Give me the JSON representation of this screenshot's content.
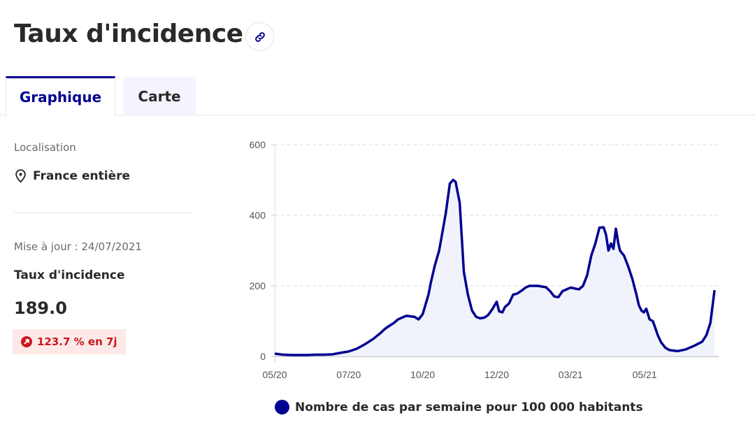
{
  "header": {
    "title": "Taux d'incidence",
    "link_icon": "link-icon"
  },
  "tabs": [
    {
      "label": "Graphique",
      "active": true
    },
    {
      "label": "Carte",
      "active": false
    }
  ],
  "sidebar": {
    "location_label": "Localisation",
    "location_icon": "map-pin-icon",
    "location_value": "France entière",
    "updated": "Mise à jour : 24/07/2021",
    "kpi_label": "Taux d'incidence",
    "kpi_value": "189.0",
    "trend_icon": "arrow-up-right-icon",
    "trend_text": "123.7 % en 7j",
    "trend_color": "#c9191e"
  },
  "colors": {
    "accent": "#000091",
    "fill": "#eef0fb",
    "grid": "#dddddd"
  },
  "chart_data": {
    "type": "area",
    "title": "",
    "xlabel": "",
    "ylabel": "",
    "ylim": [
      0,
      600
    ],
    "yticks": [
      0,
      200,
      400,
      600
    ],
    "grid": true,
    "xtick_labels": [
      "05/20",
      "07/20",
      "10/20",
      "12/20",
      "03/21",
      "05/21"
    ],
    "xtick_positions": [
      0,
      9,
      18,
      27,
      36,
      45
    ],
    "x_range": [
      0,
      54
    ],
    "legend": {
      "label": "Nombre de cas par semaine pour 100 000 habitants",
      "placement": "bottom"
    },
    "series": [
      {
        "name": "Nombre de cas par semaine pour 100 000 habitants",
        "x": [
          0,
          1,
          2,
          3,
          4,
          5,
          6,
          7,
          8,
          9,
          10,
          11,
          12,
          12.8,
          13.5,
          14.5,
          15,
          16,
          17,
          17.5,
          18,
          18.7,
          19,
          19.5,
          20,
          20.8,
          21.3,
          21.7,
          22,
          22.5,
          23,
          23.5,
          24,
          24.5,
          25,
          25.5,
          26,
          26.5,
          27,
          27.3,
          27.7,
          28,
          28.5,
          29,
          29.5,
          30,
          30.5,
          31,
          32,
          33,
          33.5,
          34,
          34.5,
          35,
          36,
          37,
          37.5,
          38,
          38.5,
          39,
          39.5,
          40,
          40.3,
          40.6,
          40.9,
          41.2,
          41.5,
          41.8,
          42,
          42.5,
          43,
          43.5,
          44,
          44.3,
          44.6,
          44.9,
          45.2,
          45.6,
          46,
          46.3,
          46.6,
          47,
          47.5,
          48,
          49,
          50,
          51,
          52,
          52.5,
          53,
          53.5
        ],
        "y": [
          8,
          5,
          4,
          4,
          4,
          5,
          5,
          6,
          10,
          14,
          22,
          35,
          50,
          65,
          80,
          95,
          105,
          115,
          112,
          105,
          120,
          175,
          210,
          260,
          300,
          405,
          490,
          500,
          495,
          435,
          240,
          175,
          130,
          112,
          108,
          110,
          118,
          135,
          155,
          128,
          125,
          140,
          150,
          175,
          178,
          186,
          195,
          200,
          200,
          196,
          185,
          170,
          168,
          185,
          195,
          190,
          200,
          230,
          285,
          320,
          365,
          366,
          345,
          300,
          320,
          305,
          362,
          320,
          300,
          285,
          255,
          220,
          175,
          145,
          130,
          125,
          135,
          105,
          100,
          80,
          60,
          40,
          25,
          18,
          15,
          20,
          30,
          42,
          60,
          95,
          188
        ]
      }
    ]
  }
}
